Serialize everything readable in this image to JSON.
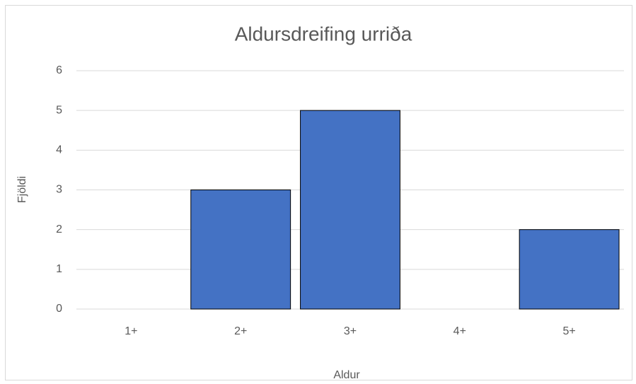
{
  "chart_data": {
    "type": "bar",
    "title": "Aldursdreifing urriða",
    "categories": [
      "1+",
      "2+",
      "3+",
      "4+",
      "5+"
    ],
    "values": [
      0,
      3,
      5,
      0,
      2
    ],
    "color": "#4472c4",
    "xlabel": "Aldur",
    "ylabel": "Fjöldi",
    "ylim": [
      0,
      6
    ],
    "yticks": [
      0,
      1,
      2,
      3,
      4,
      5,
      6
    ],
    "grid": true
  }
}
